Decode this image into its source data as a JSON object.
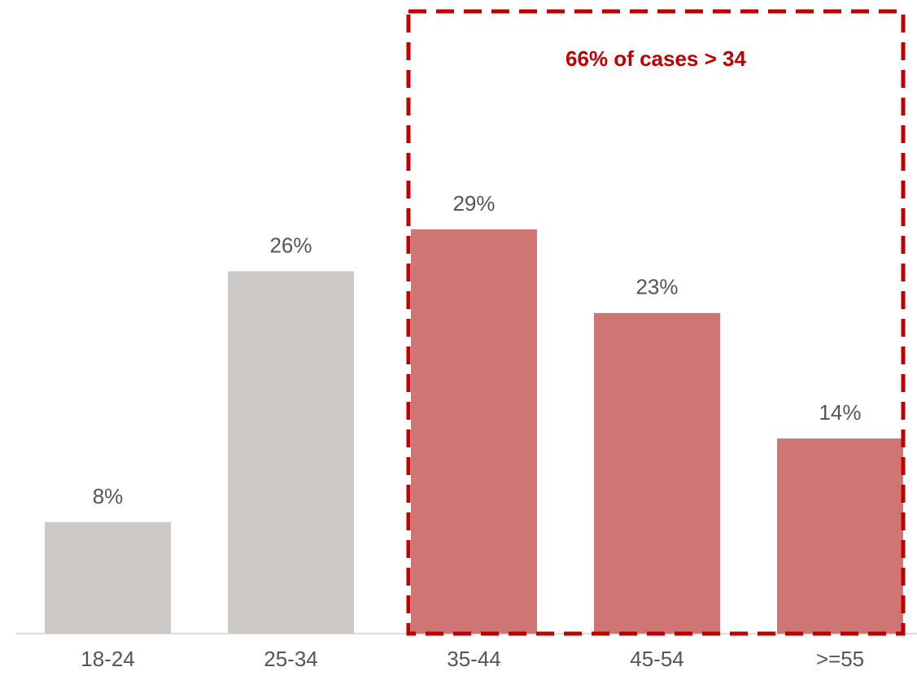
{
  "chart_data": {
    "type": "bar",
    "categories": [
      "18-24",
      "25-34",
      "35-44",
      "45-54",
      ">=55"
    ],
    "values": [
      8,
      26,
      29,
      23,
      14
    ],
    "value_labels": [
      "8%",
      "26%",
      "29%",
      "23%",
      "14%"
    ],
    "colors": [
      "#cdc9c6",
      "#cdc9c6",
      "#cf7674",
      "#cf7674",
      "#cf7674"
    ],
    "annotation": "66% of cases > 34"
  }
}
